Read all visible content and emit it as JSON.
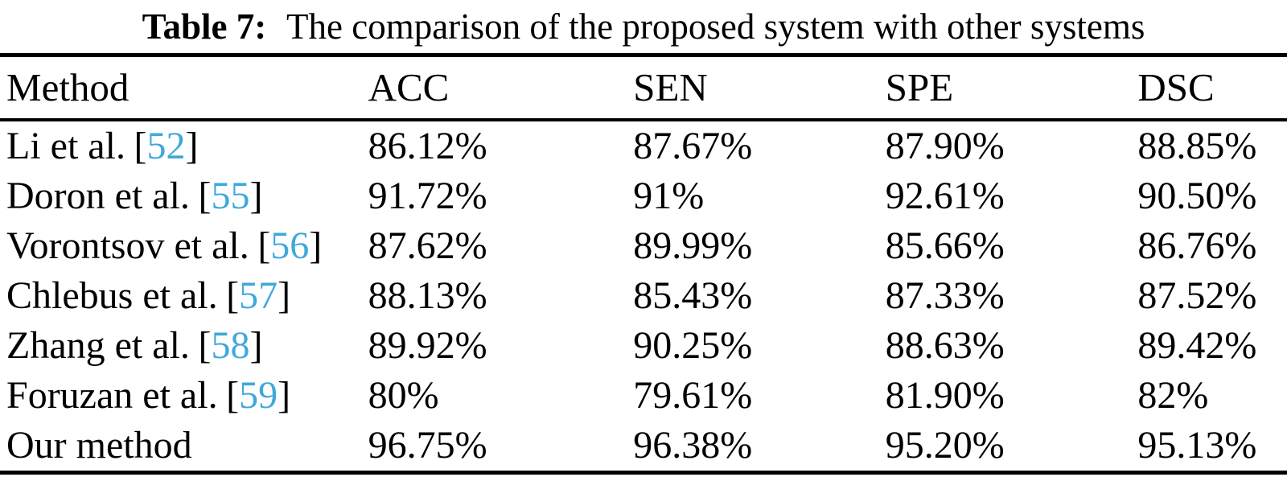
{
  "caption": {
    "label": "Table 7:",
    "text": "The comparison of the proposed system with other systems"
  },
  "table": {
    "columns": [
      "Method",
      "ACC",
      "SEN",
      "SPE",
      "DSC"
    ],
    "rows": [
      {
        "method": "Li et al.",
        "cite_open": "[",
        "cite_num": "52",
        "cite_close": "]",
        "acc": "86.12%",
        "sen": "87.67%",
        "spe": "87.90%",
        "dsc": "88.85%"
      },
      {
        "method": "Doron et al.",
        "cite_open": "[",
        "cite_num": "55",
        "cite_close": "]",
        "acc": "91.72%",
        "sen": "91%",
        "spe": "92.61%",
        "dsc": "90.50%"
      },
      {
        "method": "Vorontsov et al.",
        "cite_open": "[",
        "cite_num": "56",
        "cite_close": "]",
        "acc": "87.62%",
        "sen": "89.99%",
        "spe": "85.66%",
        "dsc": "86.76%"
      },
      {
        "method": "Chlebus et al.",
        "cite_open": "[",
        "cite_num": "57",
        "cite_close": "]",
        "acc": "88.13%",
        "sen": "85.43%",
        "spe": "87.33%",
        "dsc": "87.52%"
      },
      {
        "method": "Zhang et al.",
        "cite_open": "[",
        "cite_num": "58",
        "cite_close": "]",
        "acc": "89.92%",
        "sen": "90.25%",
        "spe": "88.63%",
        "dsc": "89.42%"
      },
      {
        "method": "Foruzan et al.",
        "cite_open": "[",
        "cite_num": "59",
        "cite_close": "]",
        "acc": "80%",
        "sen": "79.61%",
        "spe": "81.90%",
        "dsc": "82%"
      },
      {
        "method": "Our method",
        "cite_open": "",
        "cite_num": "",
        "cite_close": "",
        "acc": "96.75%",
        "sen": "96.38%",
        "spe": "95.20%",
        "dsc": "95.13%"
      }
    ]
  },
  "colors": {
    "citation_link": "#3FA8DC",
    "text": "#000000",
    "background": "#FFFFFF",
    "rule": "#000000"
  }
}
